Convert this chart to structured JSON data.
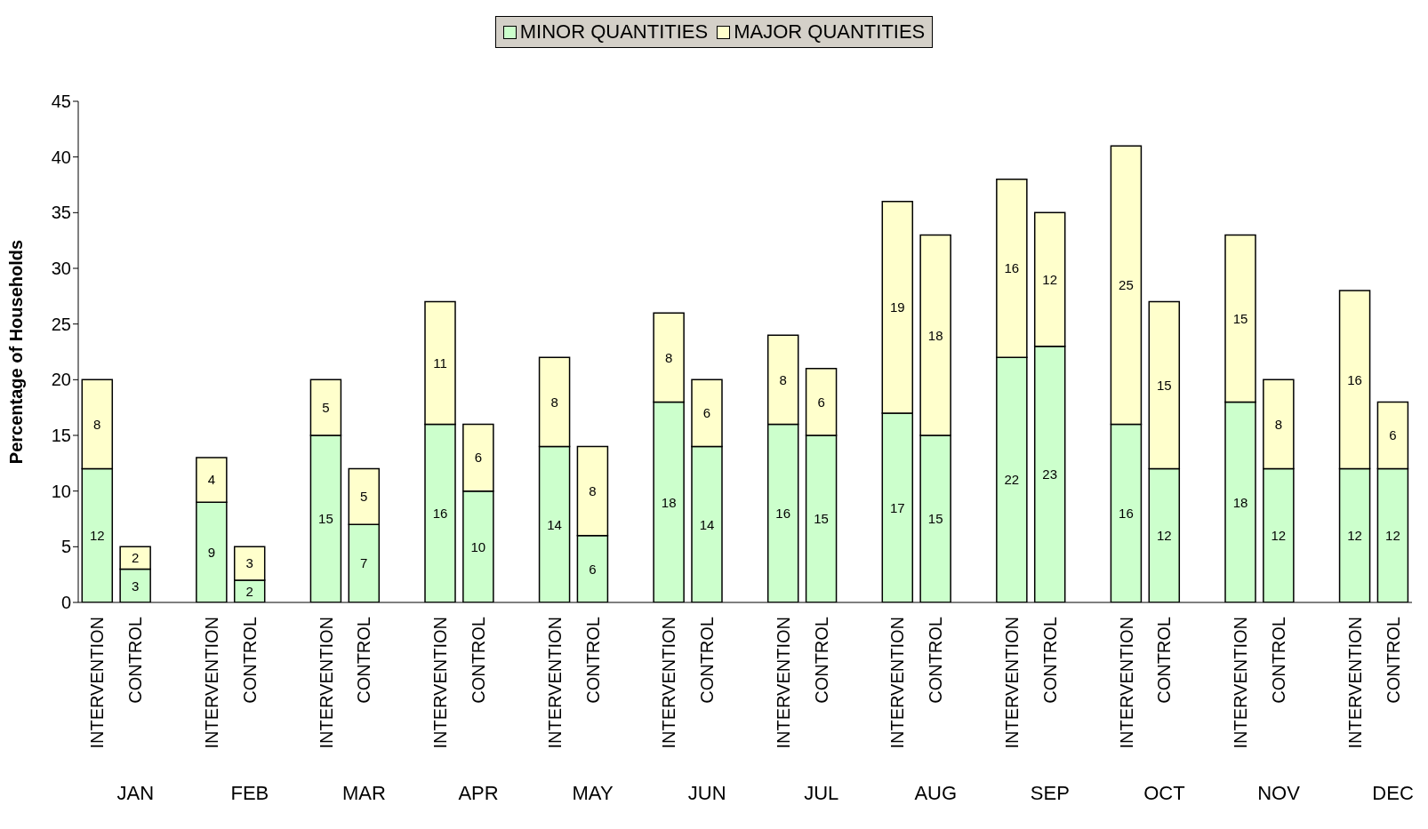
{
  "chart_data": {
    "type": "bar",
    "stacked": true,
    "ylabel": "Percentage of Households",
    "categories": [
      "INTERVENTION",
      "CONTROL",
      null,
      "INTERVENTION",
      "CONTROL",
      null,
      "INTERVENTION",
      "CONTROL",
      null,
      "INTERVENTION",
      "CONTROL",
      null,
      "INTERVENTION",
      "CONTROL",
      null,
      "INTERVENTION",
      "CONTROL",
      null,
      "INTERVENTION",
      "CONTROL",
      null,
      "INTERVENTION",
      "CONTROL",
      null,
      "INTERVENTION",
      "CONTROL",
      null,
      "INTERVENTION",
      "CONTROL",
      null,
      "INTERVENTION",
      "CONTROL",
      null,
      "INTERVENTION",
      "CONTROL"
    ],
    "series": [
      {
        "name": "MINOR QUANTITIES",
        "color": "#ccffcc",
        "values": [
          12,
          3,
          null,
          9,
          2,
          null,
          15,
          7,
          null,
          16,
          10,
          null,
          14,
          6,
          null,
          18,
          14,
          null,
          16,
          15,
          null,
          17,
          15,
          null,
          22,
          23,
          null,
          16,
          12,
          null,
          18,
          12,
          null,
          12,
          12
        ]
      },
      {
        "name": "MAJOR QUANTITIES",
        "color": "#ffffcc",
        "values": [
          8,
          2,
          null,
          4,
          3,
          null,
          5,
          5,
          null,
          11,
          6,
          null,
          8,
          8,
          null,
          8,
          6,
          null,
          8,
          6,
          null,
          19,
          18,
          null,
          16,
          12,
          null,
          25,
          15,
          null,
          15,
          8,
          null,
          16,
          6
        ]
      }
    ],
    "annotations": [
      "JAN",
      "FEB",
      "MAR",
      "APR",
      "MAY",
      "JUN",
      "JUL",
      "AUG",
      "SEP",
      "OCT",
      "NOV",
      "DEC"
    ],
    "ylim": [
      0,
      45
    ],
    "yticks": [
      0,
      5,
      10,
      15,
      20,
      25,
      30,
      35,
      40,
      45
    ],
    "grid": false,
    "legend": "top",
    "data_labels": true
  }
}
